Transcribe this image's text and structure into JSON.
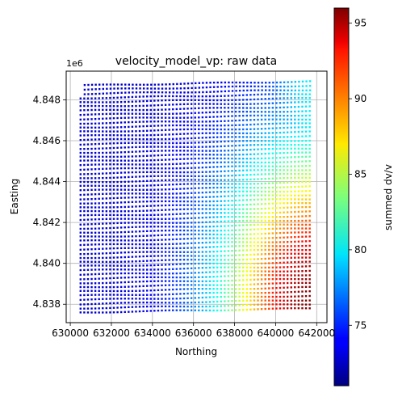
{
  "chart_data": {
    "type": "scatter",
    "title": "velocity_model_vp: raw data",
    "xlabel": "Northing",
    "ylabel": "Easting",
    "y_offset_label": "1e6",
    "colorbar_label": "summed dv/v",
    "colormap": "jet",
    "xlim": [
      629800,
      642500
    ],
    "ylim": [
      4837100,
      4849400
    ],
    "x_ticks": [
      630000,
      632000,
      634000,
      636000,
      638000,
      640000,
      642000
    ],
    "x_tick_labels": [
      "630000",
      "632000",
      "634000",
      "636000",
      "638000",
      "640000",
      "642000"
    ],
    "y_ticks": [
      4838000,
      4840000,
      4842000,
      4844000,
      4846000,
      4848000
    ],
    "y_tick_labels": [
      "4.838",
      "4.840",
      "4.842",
      "4.844",
      "4.846",
      "4.848"
    ],
    "c_range": [
      71,
      96
    ],
    "c_ticks": [
      75,
      80,
      85,
      90,
      95
    ],
    "c_tick_labels": [
      "75",
      "80",
      "85",
      "90",
      "95"
    ],
    "grid": true,
    "survey_lines": {
      "x_start": 630500,
      "x_end": 641800,
      "y_west_start": 4837600,
      "y_west_end": 4848700,
      "y_east_start": 4837800,
      "y_east_end": 4848900,
      "line_count": 55,
      "point_spacing": 180
    },
    "value_field": {
      "base": 73,
      "hotspot_x": 641800,
      "hotspot_y": 4838200,
      "hotspot_peak": 96,
      "hotspot_rx": 4500,
      "hotspot_ry": 7500,
      "east_band_peak": 80,
      "east_band_width": 2200
    }
  }
}
